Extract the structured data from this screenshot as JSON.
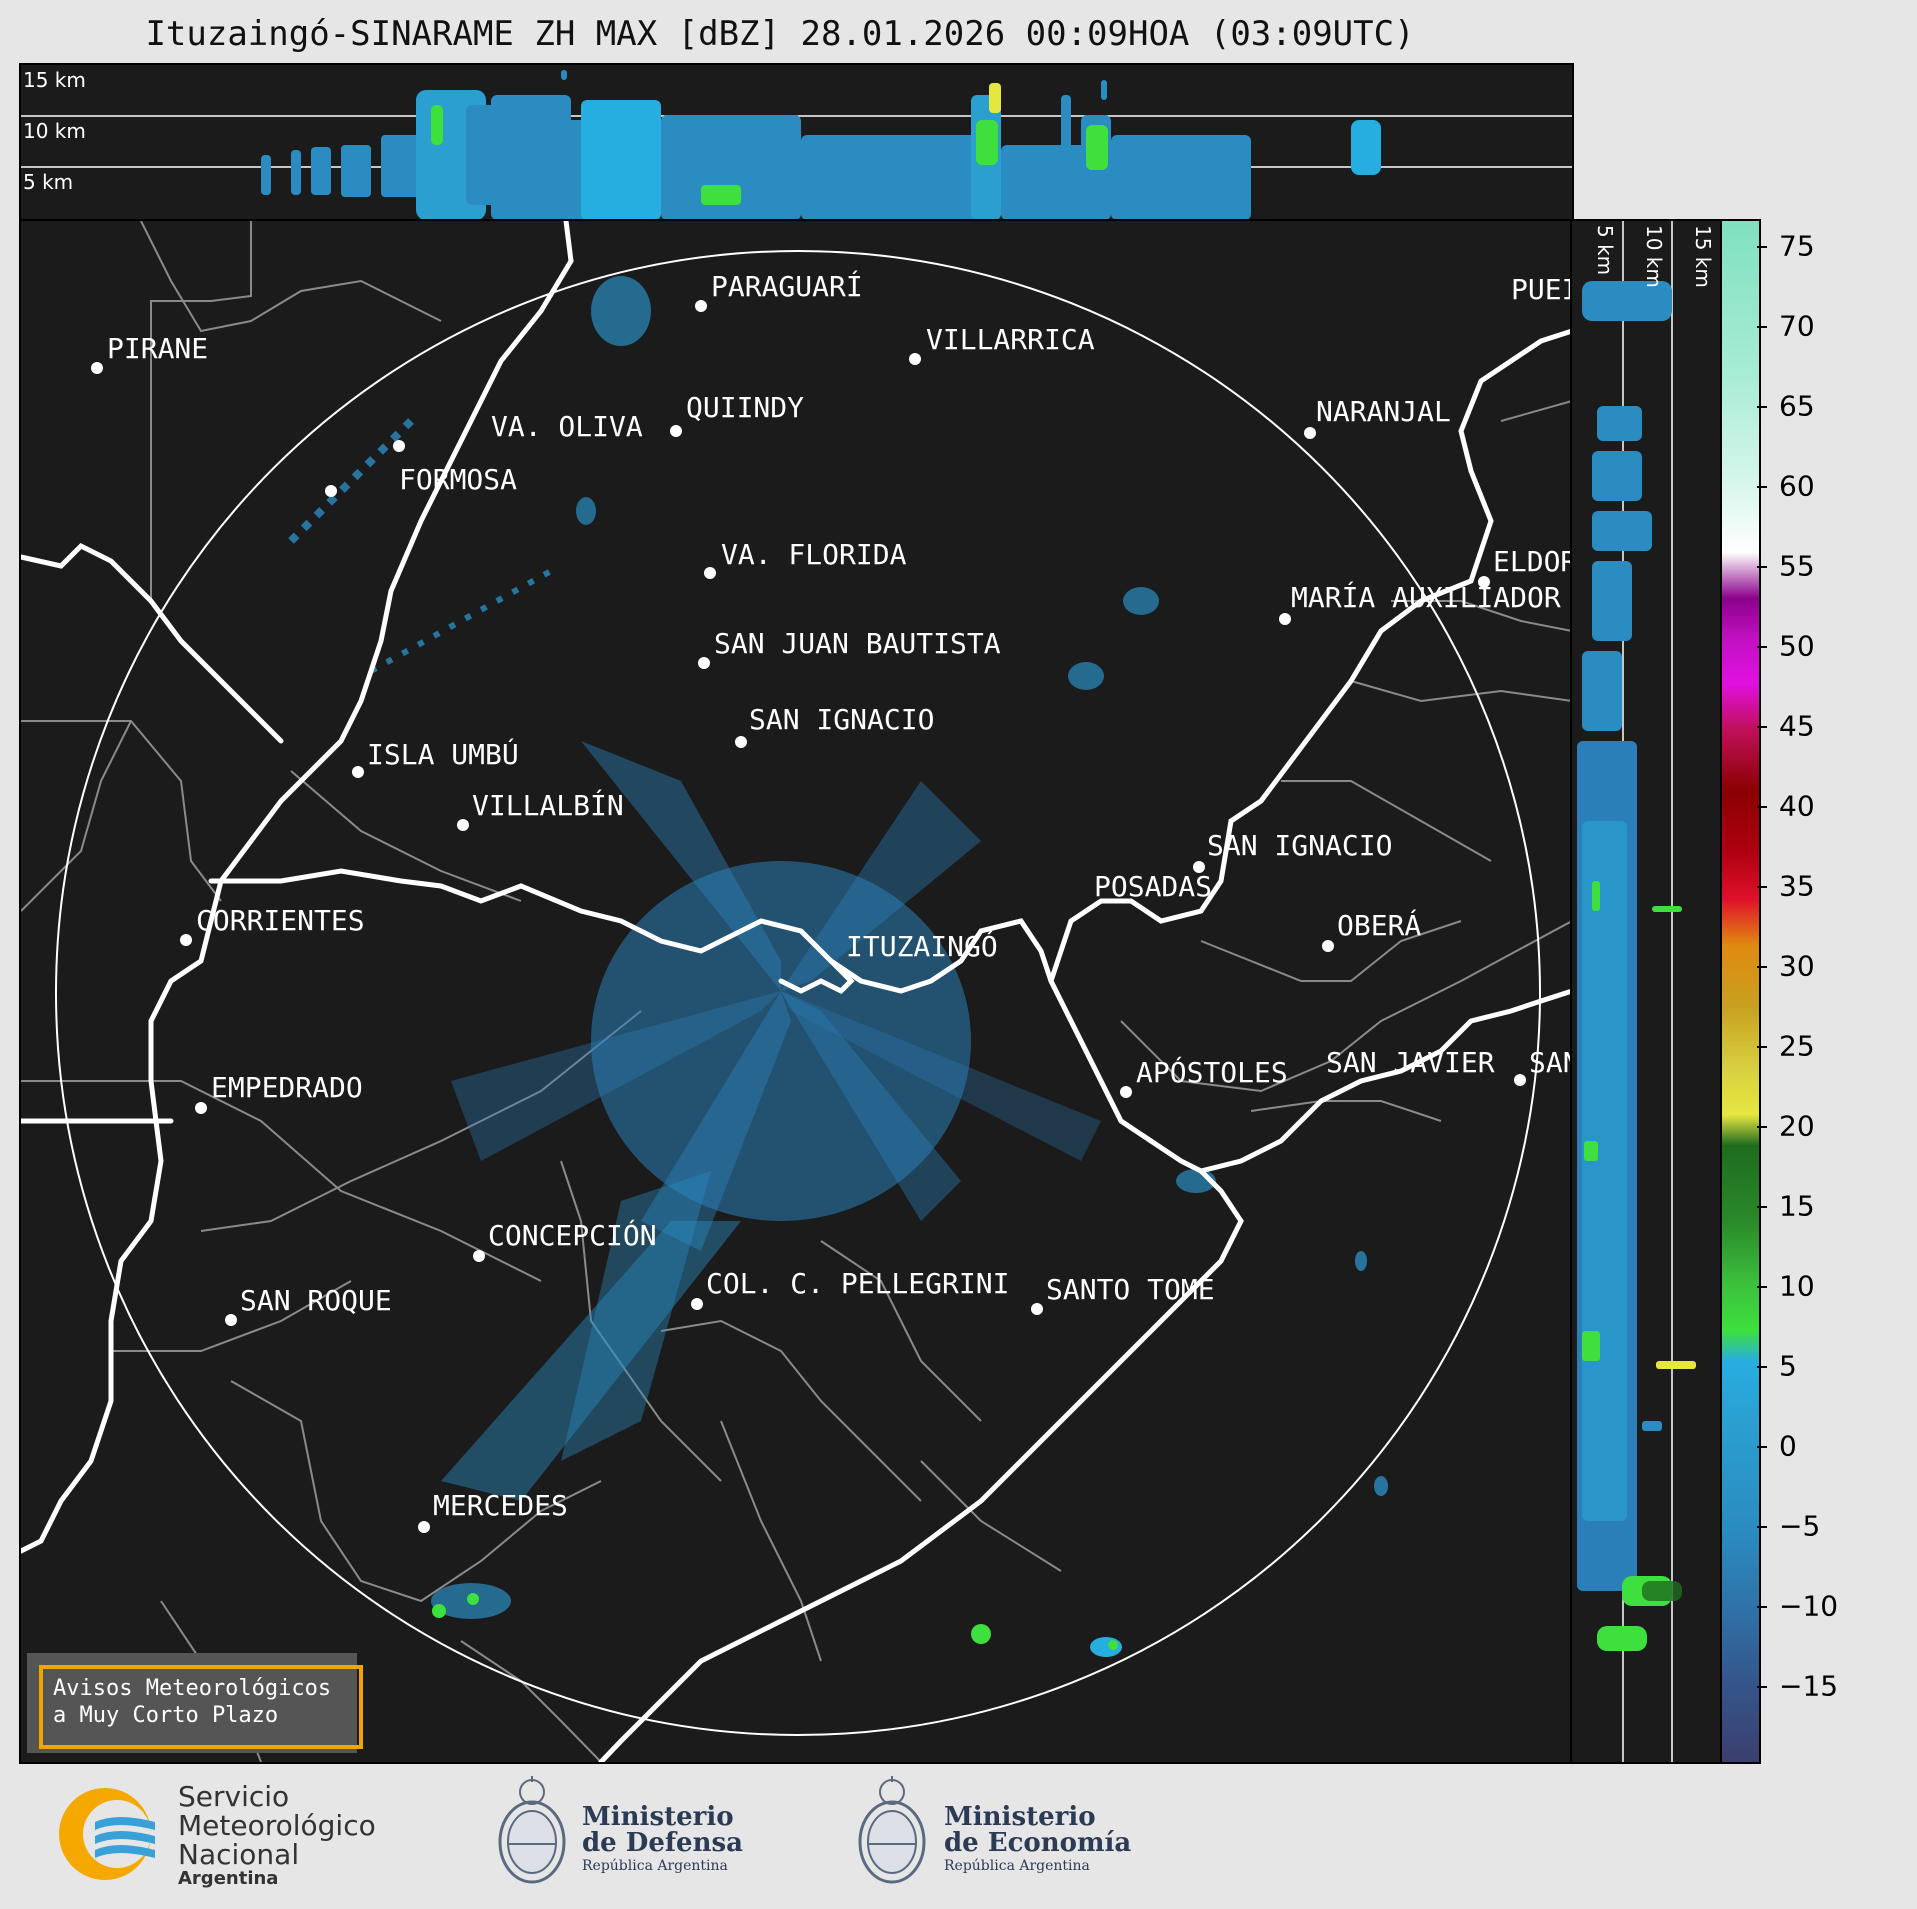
{
  "title": "Ituzaingó-SINARAME ZH MAX [dBZ] 28.01.2026 00:09HOA (03:09UTC)",
  "top_strip": {
    "altitude_labels": [
      "15 km",
      "10 km",
      "5 km"
    ]
  },
  "side_strip": {
    "altitude_labels": [
      "5 km",
      "10 km",
      "15 km"
    ]
  },
  "colorbar": {
    "unit": "dBZ",
    "ticks": [
      "75",
      "70",
      "65",
      "60",
      "55",
      "50",
      "45",
      "40",
      "35",
      "30",
      "25",
      "20",
      "15",
      "10",
      "5",
      "0",
      "−5",
      "−10",
      "−15"
    ],
    "range": [
      -20,
      77
    ],
    "colors": {
      "low": "#3a3f6e",
      "mid_blue": "#2a8cc0",
      "light_blue": "#27aee0",
      "green": "#3de03d",
      "dark_green": "#1f6b1f",
      "yellow": "#e6e640",
      "olive": "#b8a62a",
      "orange": "#e08a10",
      "red": "#e0102a",
      "dark_red": "#8a0000",
      "magenta": "#e010e0",
      "purple": "#8a008a",
      "white": "#ffffff",
      "mint": "#80e0c0"
    }
  },
  "radar": {
    "name": "ITUZAINGÓ"
  },
  "cities": [
    {
      "name": "PARAGUARÍ"
    },
    {
      "name": "VILLARRICA"
    },
    {
      "name": "PIRANE"
    },
    {
      "name": "VA. OLIVA"
    },
    {
      "name": "QUIINDY"
    },
    {
      "name": "NARANJAL"
    },
    {
      "name": "FORMOSA"
    },
    {
      "name": "VA. FLORIDA"
    },
    {
      "name": "ELDOR"
    },
    {
      "name": "MARÍA AUXILIADOR"
    },
    {
      "name": "SAN JUAN BAUTISTA"
    },
    {
      "name": "SAN IGNACIO"
    },
    {
      "name": "ISLA UMBÚ"
    },
    {
      "name": "VILLALBÍN"
    },
    {
      "name": "SAN IGNACIO"
    },
    {
      "name": "POSADAS"
    },
    {
      "name": "CORRIENTES"
    },
    {
      "name": "OBERÁ"
    },
    {
      "name": "ITUZAINGÓ"
    },
    {
      "name": "EMPEDRADO"
    },
    {
      "name": "APÓSTOLES"
    },
    {
      "name": "SAN JAVIER"
    },
    {
      "name": "SAN"
    },
    {
      "name": "CONCEPCIÓN"
    },
    {
      "name": "COL. C. PELLEGRINI"
    },
    {
      "name": "SANTO TOMÉ"
    },
    {
      "name": "SAN ROQUE"
    },
    {
      "name": "MERCEDES"
    },
    {
      "name": "PUEI"
    }
  ],
  "aviso": {
    "line1": "Avisos Meteorológicos",
    "line2": "a Muy Corto Plazo"
  },
  "logos": {
    "smn": {
      "line1": "Servicio",
      "line2": "Meteorológico",
      "line3": "Nacional",
      "line4": "Argentina"
    },
    "defensa": {
      "line1": "Ministerio",
      "line2": "de Defensa",
      "line3": "República Argentina"
    },
    "economia": {
      "line1": "Ministerio",
      "line2": "de Economía",
      "line3": "República Argentina"
    }
  }
}
